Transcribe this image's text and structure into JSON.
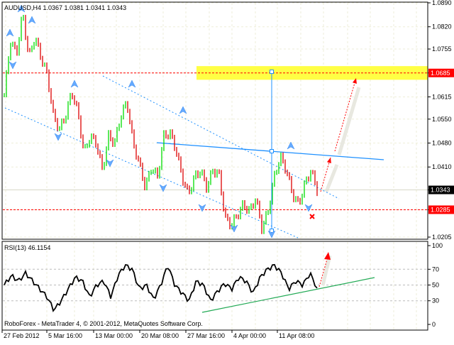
{
  "header": {
    "symbol_info": "AUDUSD,H4  1.0367 1.0381 1.0341 1.0343"
  },
  "rsi_header": "RSI(13) 46.1154",
  "copyright": "RoboForex - MetaTrader 4, © 2001-2012, MetaQuotes Software Corp.",
  "colors": {
    "bull": "#00dd00",
    "bear": "#dd0000",
    "zone": "#ffff44",
    "channel": "#1e90ff",
    "rsi_trend": "#22aa55",
    "level": "#ff0000"
  },
  "chart_data": [
    {
      "type": "bar",
      "series_name": "AUDUSD,H4",
      "ohlc_last": {
        "open": 1.0367,
        "high": 1.0381,
        "low": 1.0341,
        "close": 1.0343
      },
      "close": [
        1.062,
        1.078,
        1.074,
        1.086,
        1.073,
        1.079,
        1.073,
        1.068,
        1.056,
        1.052,
        1.056,
        1.063,
        1.057,
        1.045,
        1.05,
        1.048,
        1.04,
        1.05,
        1.048,
        1.056,
        1.06,
        1.048,
        1.042,
        1.035,
        1.041,
        1.038,
        1.05,
        1.051,
        1.046,
        1.038,
        1.033,
        1.038,
        1.04,
        1.035,
        1.04,
        1.039,
        1.026,
        1.024,
        1.027,
        1.03,
        1.028,
        1.032,
        1.023,
        1.028,
        1.038,
        1.044,
        1.04,
        1.033,
        1.03,
        1.036,
        1.04,
        1.0343
      ],
      "ylim": [
        1.0205,
        1.089
      ],
      "y_ticks": [
        "1.0890",
        "1.0820",
        "1.0755",
        "1.0685",
        "1.0615",
        "1.0550",
        "1.0480",
        "1.0410",
        "1.0343",
        "1.0285",
        "1.0205"
      ],
      "price_levels": [
        {
          "label": "1.0685",
          "value": 1.0685
        },
        {
          "label": "1.0285",
          "value": 1.0285
        }
      ],
      "current_price_label": "1.0343",
      "x_ticks": [
        "27 Feb 2012",
        "5 Mar 16:00",
        "13 Mar 00:00",
        "20 Mar 08:00",
        "27 Mar 16:00",
        "4 Apr 00:00",
        "11 Apr 08:00"
      ],
      "grid": true
    },
    {
      "type": "line",
      "series_name": "RSI(13)",
      "values": [
        50,
        62,
        55,
        65,
        55,
        45,
        35,
        18,
        30,
        45,
        60,
        55,
        35,
        50,
        55,
        35,
        62,
        75,
        70,
        45,
        50,
        32,
        50,
        75,
        50,
        40,
        30,
        55,
        50,
        30,
        42,
        52,
        45,
        60,
        55,
        40,
        60,
        70,
        75,
        65,
        45,
        55,
        50,
        65,
        46.1154
      ],
      "ylim": [
        0,
        100
      ],
      "y_ticks": [
        "100",
        "70",
        "50",
        "30",
        "0"
      ],
      "levels": [
        70,
        50,
        30
      ]
    }
  ]
}
